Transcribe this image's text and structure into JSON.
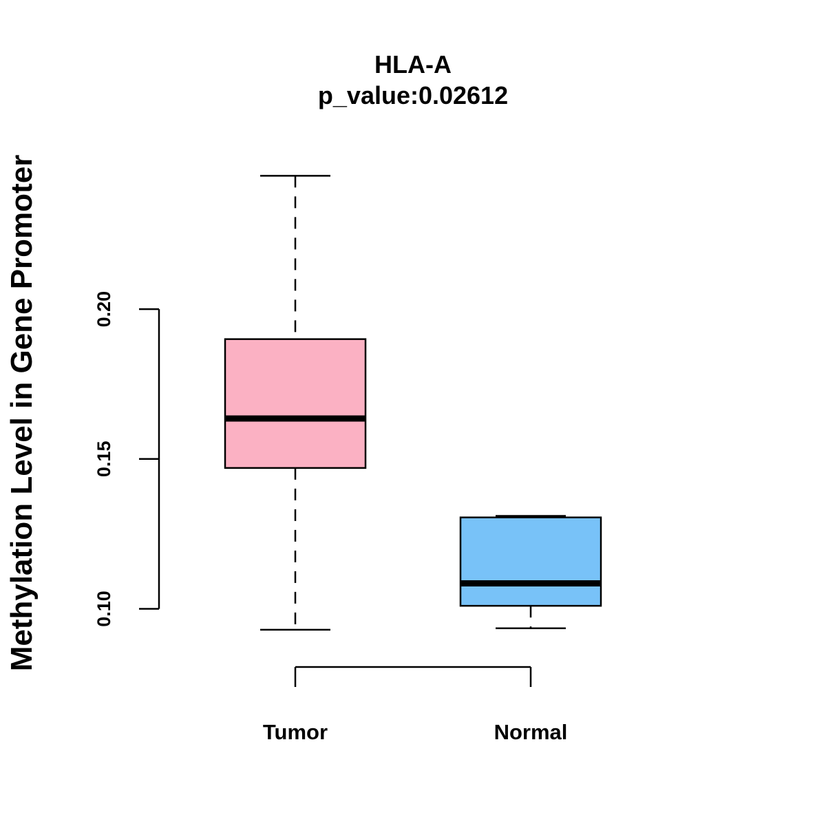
{
  "chart_data": {
    "type": "boxplot",
    "title": "HLA-A",
    "subtitle": "p_value:0.02612",
    "xlabel": "",
    "ylabel": "Methylation Level in Gene Promoter",
    "ylim": [
      0.0815,
      0.2485
    ],
    "yticks": [
      0.1,
      0.15,
      0.2
    ],
    "ytick_labels": [
      "0.10",
      "0.15",
      "0.20"
    ],
    "categories": [
      "Tumor",
      "Normal"
    ],
    "series": [
      {
        "name": "Tumor",
        "min": 0.093,
        "q1": 0.147,
        "median": 0.1635,
        "q3": 0.19,
        "max": 0.2445,
        "color": "#FBB1C3"
      },
      {
        "name": "Normal",
        "min": 0.0935,
        "q1": 0.101,
        "median": 0.1085,
        "q3": 0.1305,
        "max": 0.131,
        "color": "#78C2F8"
      }
    ],
    "grid": false,
    "annotations": []
  }
}
